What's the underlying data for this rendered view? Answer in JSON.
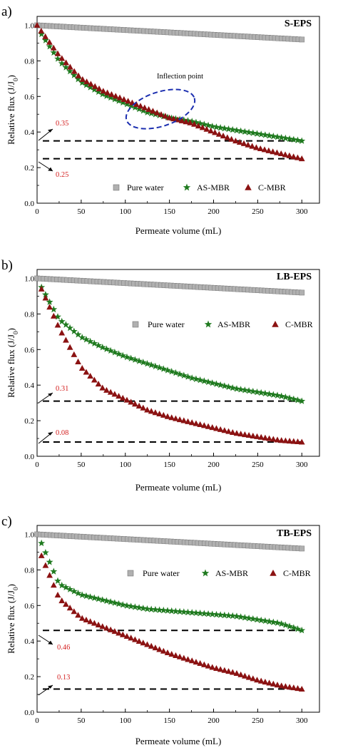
{
  "colors": {
    "pure_water": "#b0b0b0",
    "as_mbr": "#1f7a1f",
    "c_mbr": "#8b1212",
    "annotation_value": "#d42020",
    "inflection_ellipse": "#1c2fb0"
  },
  "chart_data": [
    {
      "type": "scatter",
      "panel_label": "a)",
      "title": "S-EPS",
      "xlabel": "Permeate volume (mL)",
      "ylabel": "Relative flux (J/J",
      "ylabel_sub": "0",
      "ylabel_close": ")",
      "xlim": [
        0,
        320
      ],
      "ylim": [
        0,
        1.05
      ],
      "xticks": [
        0,
        50,
        100,
        150,
        200,
        250,
        300
      ],
      "yticks": [
        0.0,
        0.2,
        0.4,
        0.6,
        0.8,
        1.0
      ],
      "legend": {
        "position": "bottom",
        "entries": [
          "Pure water",
          "AS-MBR",
          "C-MBR"
        ]
      },
      "series": [
        {
          "name": "Pure water",
          "marker": "square",
          "start": [
            0,
            1.0
          ],
          "end": [
            300,
            0.92
          ],
          "curve": "linear",
          "n": 80
        },
        {
          "name": "AS-MBR",
          "marker": "star",
          "x": [
            5,
            25,
            50,
            75,
            100,
            125,
            150,
            175,
            200,
            225,
            250,
            275,
            300
          ],
          "y": [
            0.95,
            0.8,
            0.68,
            0.61,
            0.56,
            0.51,
            0.48,
            0.46,
            0.43,
            0.41,
            0.39,
            0.37,
            0.35
          ],
          "n": 65
        },
        {
          "name": "C-MBR",
          "marker": "triangle",
          "x": [
            0,
            25,
            50,
            75,
            100,
            125,
            150,
            175,
            200,
            225,
            250,
            275,
            300
          ],
          "y": [
            1.0,
            0.83,
            0.7,
            0.63,
            0.58,
            0.53,
            0.48,
            0.45,
            0.4,
            0.35,
            0.31,
            0.28,
            0.25
          ],
          "n": 65
        }
      ],
      "reference_lines": [
        {
          "y": 0.35,
          "label": "0.35"
        },
        {
          "y": 0.25,
          "label": "0.25"
        }
      ],
      "annotation": {
        "text": "Inflection point",
        "center": [
          140,
          0.54
        ]
      }
    },
    {
      "type": "scatter",
      "panel_label": "b)",
      "title": "LB-EPS",
      "xlabel": "Permeate volume (mL)",
      "ylabel": "Relative flux (J/J",
      "ylabel_sub": "0",
      "ylabel_close": ")",
      "xlim": [
        0,
        320
      ],
      "ylim": [
        0,
        1.05
      ],
      "xticks": [
        0,
        50,
        100,
        150,
        200,
        250,
        300
      ],
      "yticks": [
        0.0,
        0.2,
        0.4,
        0.6,
        0.8,
        1.0
      ],
      "legend": {
        "position": "top-right",
        "entries": [
          "Pure water",
          "AS-MBR",
          "C-MBR"
        ]
      },
      "series": [
        {
          "name": "Pure water",
          "marker": "square",
          "start": [
            0,
            1.0
          ],
          "end": [
            300,
            0.92
          ],
          "curve": "linear",
          "n": 80
        },
        {
          "name": "AS-MBR",
          "marker": "star",
          "x": [
            5,
            25,
            50,
            75,
            100,
            125,
            150,
            175,
            200,
            225,
            250,
            275,
            300
          ],
          "y": [
            0.95,
            0.77,
            0.67,
            0.61,
            0.56,
            0.52,
            0.48,
            0.44,
            0.41,
            0.38,
            0.36,
            0.34,
            0.31
          ],
          "n": 65
        },
        {
          "name": "C-MBR",
          "marker": "triangle",
          "x": [
            5,
            25,
            50,
            75,
            100,
            125,
            150,
            175,
            200,
            225,
            250,
            275,
            300
          ],
          "y": [
            0.94,
            0.72,
            0.5,
            0.38,
            0.32,
            0.26,
            0.22,
            0.19,
            0.16,
            0.13,
            0.11,
            0.09,
            0.08
          ],
          "n": 65
        }
      ],
      "reference_lines": [
        {
          "y": 0.31,
          "label": "0.31"
        },
        {
          "y": 0.08,
          "label": "0.08"
        }
      ]
    },
    {
      "type": "scatter",
      "panel_label": "c)",
      "title": "TB-EPS",
      "xlabel": "Permeate volume (mL)",
      "ylabel": "Relative flux (J/J",
      "ylabel_sub": "0",
      "ylabel_close": ")",
      "xlim": [
        0,
        320
      ],
      "ylim": [
        0,
        1.05
      ],
      "xticks": [
        0,
        50,
        100,
        150,
        200,
        250,
        300
      ],
      "yticks": [
        0.0,
        0.2,
        0.4,
        0.6,
        0.8,
        1.0
      ],
      "legend": {
        "position": "top-right",
        "entries": [
          "Pure water",
          "AS-MBR",
          "C-MBR"
        ]
      },
      "series": [
        {
          "name": "Pure water",
          "marker": "square",
          "start": [
            0,
            1.0
          ],
          "end": [
            300,
            0.92
          ],
          "curve": "linear",
          "n": 80
        },
        {
          "name": "AS-MBR",
          "marker": "star",
          "x": [
            5,
            25,
            50,
            75,
            100,
            125,
            150,
            175,
            200,
            225,
            250,
            275,
            300
          ],
          "y": [
            0.95,
            0.72,
            0.66,
            0.63,
            0.6,
            0.58,
            0.57,
            0.56,
            0.55,
            0.54,
            0.52,
            0.5,
            0.46
          ],
          "n": 65
        },
        {
          "name": "C-MBR",
          "marker": "triangle",
          "x": [
            5,
            25,
            50,
            75,
            100,
            125,
            150,
            175,
            200,
            225,
            250,
            275,
            300
          ],
          "y": [
            0.88,
            0.64,
            0.53,
            0.48,
            0.43,
            0.38,
            0.33,
            0.29,
            0.25,
            0.22,
            0.18,
            0.15,
            0.13
          ],
          "n": 65
        }
      ],
      "reference_lines": [
        {
          "y": 0.46,
          "label": "0.46"
        },
        {
          "y": 0.13,
          "label": "0.13"
        }
      ]
    }
  ]
}
